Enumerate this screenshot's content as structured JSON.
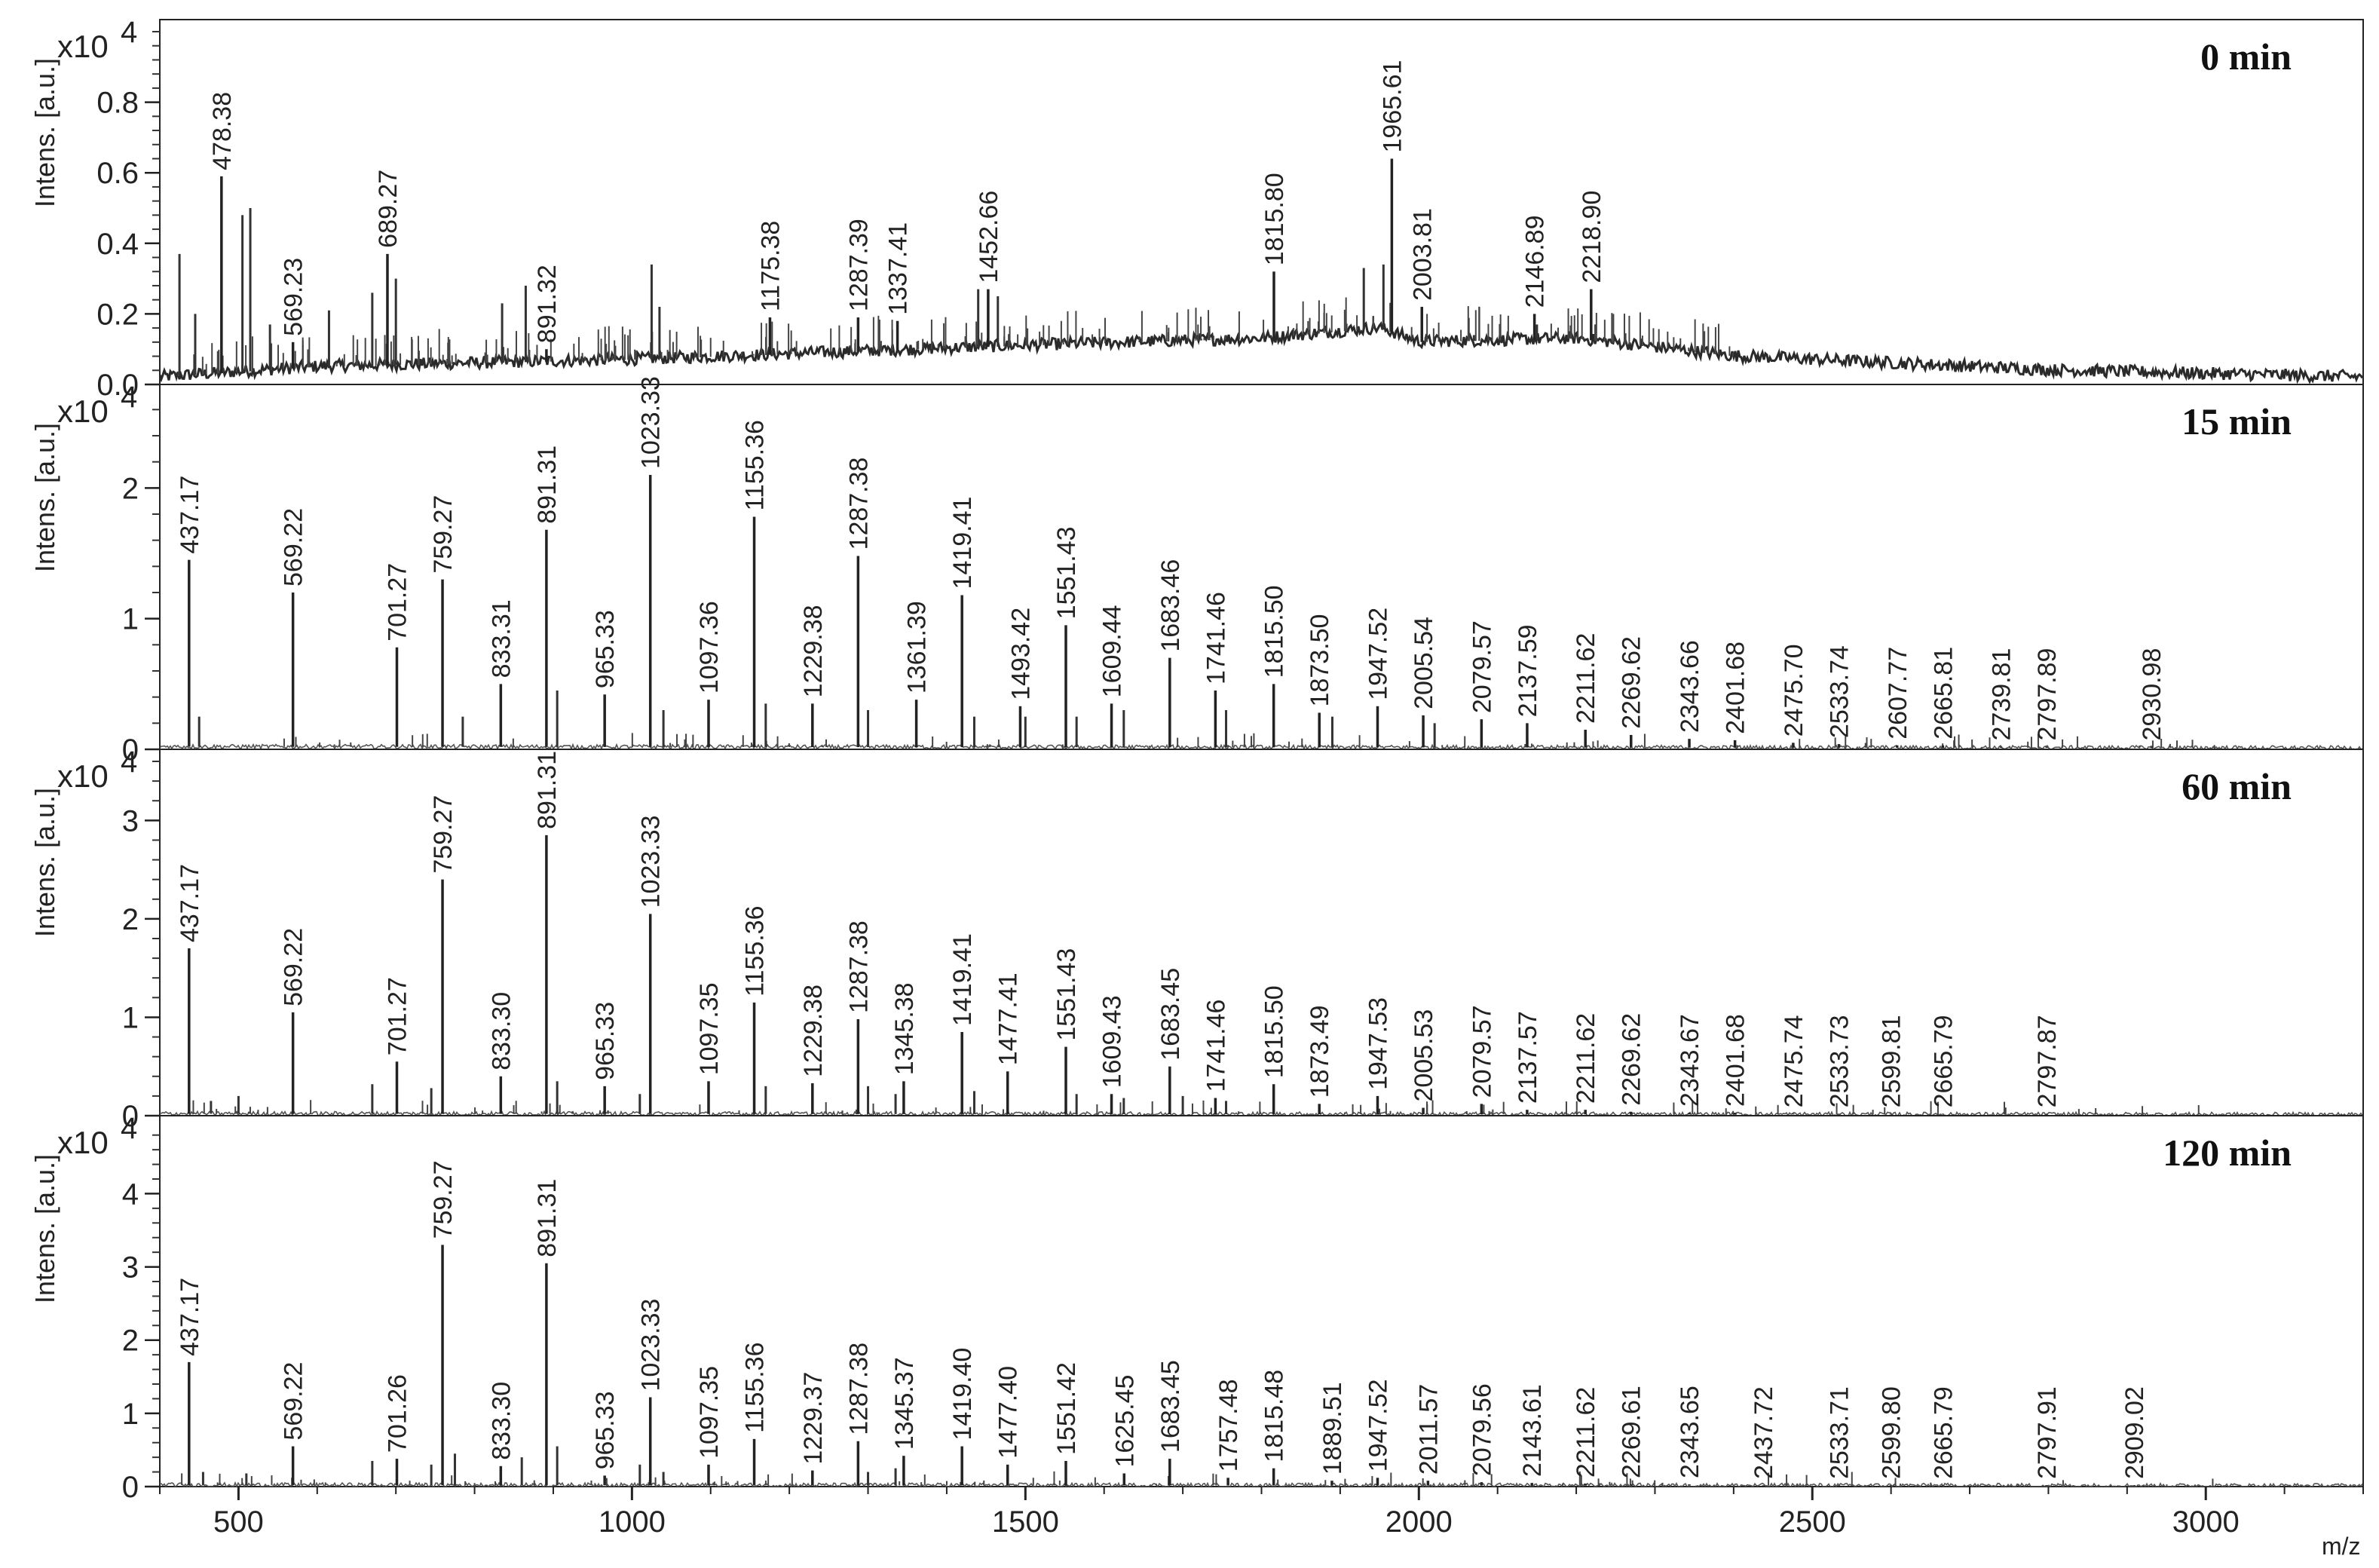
{
  "chart_data": {
    "type": "line",
    "title": "",
    "xlabel": "m/z",
    "xlim": [
      400,
      3200
    ],
    "x_ticks": [
      500,
      1000,
      1500,
      2000,
      2500,
      3000
    ],
    "panels": [
      {
        "title": "0 min",
        "ylabel": "Intens. [a.u.]",
        "multiplier": "x10",
        "exponent": "4",
        "ylim": [
          0,
          1.0
        ],
        "y_ticks": [
          0.0,
          0.2,
          0.4,
          0.6,
          0.8
        ],
        "y_tick_labels": [
          "0.0",
          "0.2",
          "0.4",
          "0.6",
          "0.8"
        ],
        "baseline": [
          [
            400,
            0.02
          ],
          [
            600,
            0.05
          ],
          [
            1000,
            0.07
          ],
          [
            1500,
            0.11
          ],
          [
            1800,
            0.13
          ],
          [
            1950,
            0.16
          ],
          [
            2000,
            0.12
          ],
          [
            2200,
            0.13
          ],
          [
            2400,
            0.08
          ],
          [
            2800,
            0.04
          ],
          [
            3200,
            0.02
          ]
        ],
        "labeled_peaks": [
          {
            "mz": 478.38,
            "label": "478.38",
            "intensity": 0.59
          },
          {
            "mz": 569.23,
            "label": "569.23",
            "intensity": 0.12
          },
          {
            "mz": 689.27,
            "label": "689.27",
            "intensity": 0.37
          },
          {
            "mz": 891.32,
            "label": "891.32",
            "intensity": 0.1
          },
          {
            "mz": 1175.38,
            "label": "1175.38",
            "intensity": 0.19
          },
          {
            "mz": 1287.39,
            "label": "1287.39",
            "intensity": 0.19
          },
          {
            "mz": 1337.41,
            "label": "1337.41",
            "intensity": 0.18
          },
          {
            "mz": 1452.66,
            "label": "1452.66",
            "intensity": 0.27
          },
          {
            "mz": 1815.8,
            "label": "1815.80",
            "intensity": 0.32
          },
          {
            "mz": 1965.61,
            "label": "1965.61",
            "intensity": 0.64
          },
          {
            "mz": 2003.81,
            "label": "2003.81",
            "intensity": 0.22
          },
          {
            "mz": 2146.89,
            "label": "2146.89",
            "intensity": 0.2
          },
          {
            "mz": 2218.9,
            "label": "2218.90",
            "intensity": 0.27
          }
        ],
        "minor_peaks": [
          [
            425,
            0.37
          ],
          [
            445,
            0.2
          ],
          [
            505,
            0.48
          ],
          [
            515,
            0.5
          ],
          [
            540,
            0.17
          ],
          [
            615,
            0.21
          ],
          [
            670,
            0.26
          ],
          [
            700,
            0.3
          ],
          [
            835,
            0.23
          ],
          [
            865,
            0.28
          ],
          [
            1025,
            0.34
          ],
          [
            1035,
            0.22
          ],
          [
            1440,
            0.27
          ],
          [
            1465,
            0.25
          ],
          [
            1930,
            0.33
          ],
          [
            1955,
            0.34
          ],
          [
            2070,
            0.14
          ],
          [
            2150,
            0.17
          ]
        ]
      },
      {
        "title": "15 min",
        "ylabel": "Intens. [a.u.]",
        "multiplier": "x10",
        "exponent": "4",
        "ylim": [
          0,
          2.7
        ],
        "y_ticks": [
          0,
          1,
          2
        ],
        "y_tick_labels": [
          "0",
          "1",
          "2"
        ],
        "baseline": [
          [
            400,
            0.02
          ],
          [
            3200,
            0.01
          ]
        ],
        "labeled_peaks": [
          {
            "mz": 437.17,
            "label": "437.17",
            "intensity": 1.45
          },
          {
            "mz": 569.22,
            "label": "569.22",
            "intensity": 1.2
          },
          {
            "mz": 701.27,
            "label": "701.27",
            "intensity": 0.78
          },
          {
            "mz": 759.27,
            "label": "759.27",
            "intensity": 1.3
          },
          {
            "mz": 833.31,
            "label": "833.31",
            "intensity": 0.5
          },
          {
            "mz": 891.31,
            "label": "891.31",
            "intensity": 1.68
          },
          {
            "mz": 965.33,
            "label": "965.33",
            "intensity": 0.42
          },
          {
            "mz": 1023.33,
            "label": "1023.33",
            "intensity": 2.1
          },
          {
            "mz": 1097.36,
            "label": "1097.36",
            "intensity": 0.38
          },
          {
            "mz": 1155.36,
            "label": "1155.36",
            "intensity": 1.78
          },
          {
            "mz": 1229.38,
            "label": "1229.38",
            "intensity": 0.35
          },
          {
            "mz": 1287.38,
            "label": "1287.38",
            "intensity": 1.48
          },
          {
            "mz": 1361.39,
            "label": "1361.39",
            "intensity": 0.38
          },
          {
            "mz": 1419.41,
            "label": "1419.41",
            "intensity": 1.18
          },
          {
            "mz": 1493.42,
            "label": "1493.42",
            "intensity": 0.33
          },
          {
            "mz": 1551.43,
            "label": "1551.43",
            "intensity": 0.95
          },
          {
            "mz": 1609.44,
            "label": "1609.44",
            "intensity": 0.35
          },
          {
            "mz": 1683.46,
            "label": "1683.46",
            "intensity": 0.7
          },
          {
            "mz": 1741.46,
            "label": "1741.46",
            "intensity": 0.45
          },
          {
            "mz": 1815.5,
            "label": "1815.50",
            "intensity": 0.5
          },
          {
            "mz": 1873.5,
            "label": "1873.50",
            "intensity": 0.28
          },
          {
            "mz": 1947.52,
            "label": "1947.52",
            "intensity": 0.33
          },
          {
            "mz": 2005.54,
            "label": "2005.54",
            "intensity": 0.26
          },
          {
            "mz": 2079.57,
            "label": "2079.57",
            "intensity": 0.23
          },
          {
            "mz": 2137.59,
            "label": "2137.59",
            "intensity": 0.2
          },
          {
            "mz": 2211.62,
            "label": "2211.62",
            "intensity": 0.15
          },
          {
            "mz": 2269.62,
            "label": "2269.62",
            "intensity": 0.11
          },
          {
            "mz": 2343.66,
            "label": "2343.66",
            "intensity": 0.08
          },
          {
            "mz": 2401.68,
            "label": "2401.68",
            "intensity": 0.07
          },
          {
            "mz": 2475.7,
            "label": "2475.70",
            "intensity": 0.05
          },
          {
            "mz": 2533.74,
            "label": "2533.74",
            "intensity": 0.04
          },
          {
            "mz": 2607.77,
            "label": "2607.77",
            "intensity": 0.03
          },
          {
            "mz": 2665.81,
            "label": "2665.81",
            "intensity": 0.03
          },
          {
            "mz": 2739.81,
            "label": "2739.81",
            "intensity": 0.02
          },
          {
            "mz": 2797.89,
            "label": "2797.89",
            "intensity": 0.02
          },
          {
            "mz": 2930.98,
            "label": "2930.98",
            "intensity": 0.02
          }
        ],
        "minor_peaks": [
          [
            450,
            0.25
          ],
          [
            785,
            0.25
          ],
          [
            905,
            0.45
          ],
          [
            1040,
            0.3
          ],
          [
            1170,
            0.35
          ],
          [
            1300,
            0.3
          ],
          [
            1435,
            0.25
          ],
          [
            1500,
            0.25
          ],
          [
            1565,
            0.25
          ],
          [
            1625,
            0.3
          ],
          [
            1755,
            0.3
          ],
          [
            1890,
            0.25
          ],
          [
            2020,
            0.2
          ]
        ]
      },
      {
        "title": "60 min",
        "ylabel": "Intens. [a.u.]",
        "multiplier": "x10",
        "exponent": "4",
        "ylim": [
          0,
          3.6
        ],
        "y_ticks": [
          0,
          1,
          2,
          3
        ],
        "y_tick_labels": [
          "0",
          "1",
          "2",
          "3"
        ],
        "baseline": [
          [
            400,
            0.02
          ],
          [
            3200,
            0.01
          ]
        ],
        "labeled_peaks": [
          {
            "mz": 437.17,
            "label": "437.17",
            "intensity": 1.7
          },
          {
            "mz": 569.22,
            "label": "569.22",
            "intensity": 1.05
          },
          {
            "mz": 701.27,
            "label": "701.27",
            "intensity": 0.55
          },
          {
            "mz": 759.27,
            "label": "759.27",
            "intensity": 2.4
          },
          {
            "mz": 833.3,
            "label": "833.30",
            "intensity": 0.4
          },
          {
            "mz": 891.31,
            "label": "891.31",
            "intensity": 2.85
          },
          {
            "mz": 965.33,
            "label": "965.33",
            "intensity": 0.3
          },
          {
            "mz": 1023.33,
            "label": "1023.33",
            "intensity": 2.05
          },
          {
            "mz": 1097.35,
            "label": "1097.35",
            "intensity": 0.35
          },
          {
            "mz": 1155.36,
            "label": "1155.36",
            "intensity": 1.15
          },
          {
            "mz": 1229.38,
            "label": "1229.38",
            "intensity": 0.33
          },
          {
            "mz": 1287.38,
            "label": "1287.38",
            "intensity": 0.98
          },
          {
            "mz": 1345.38,
            "label": "1345.38",
            "intensity": 0.35
          },
          {
            "mz": 1419.41,
            "label": "1419.41",
            "intensity": 0.85
          },
          {
            "mz": 1477.41,
            "label": "1477.41",
            "intensity": 0.45
          },
          {
            "mz": 1551.43,
            "label": "1551.43",
            "intensity": 0.7
          },
          {
            "mz": 1609.43,
            "label": "1609.43",
            "intensity": 0.22
          },
          {
            "mz": 1683.45,
            "label": "1683.45",
            "intensity": 0.5
          },
          {
            "mz": 1741.46,
            "label": "1741.46",
            "intensity": 0.18
          },
          {
            "mz": 1815.5,
            "label": "1815.50",
            "intensity": 0.32
          },
          {
            "mz": 1873.49,
            "label": "1873.49",
            "intensity": 0.12
          },
          {
            "mz": 1947.53,
            "label": "1947.53",
            "intensity": 0.2
          },
          {
            "mz": 2005.53,
            "label": "2005.53",
            "intensity": 0.08
          },
          {
            "mz": 2079.57,
            "label": "2079.57",
            "intensity": 0.12
          },
          {
            "mz": 2137.57,
            "label": "2137.57",
            "intensity": 0.06
          },
          {
            "mz": 2211.62,
            "label": "2211.62",
            "intensity": 0.06
          },
          {
            "mz": 2269.62,
            "label": "2269.62",
            "intensity": 0.04
          },
          {
            "mz": 2343.67,
            "label": "2343.67",
            "intensity": 0.03
          },
          {
            "mz": 2401.68,
            "label": "2401.68",
            "intensity": 0.03
          },
          {
            "mz": 2475.74,
            "label": "2475.74",
            "intensity": 0.02
          },
          {
            "mz": 2533.73,
            "label": "2533.73",
            "intensity": 0.02
          },
          {
            "mz": 2599.81,
            "label": "2599.81",
            "intensity": 0.02
          },
          {
            "mz": 2665.79,
            "label": "2665.79",
            "intensity": 0.02
          },
          {
            "mz": 2797.87,
            "label": "2797.87",
            "intensity": 0.02
          }
        ],
        "minor_peaks": [
          [
            465,
            0.15
          ],
          [
            500,
            0.2
          ],
          [
            670,
            0.32
          ],
          [
            745,
            0.28
          ],
          [
            905,
            0.35
          ],
          [
            1010,
            0.22
          ],
          [
            1170,
            0.3
          ],
          [
            1300,
            0.3
          ],
          [
            1335,
            0.22
          ],
          [
            1435,
            0.25
          ],
          [
            1565,
            0.22
          ],
          [
            1625,
            0.18
          ],
          [
            1700,
            0.2
          ],
          [
            1755,
            0.15
          ]
        ]
      },
      {
        "title": "120 min",
        "ylabel": "Intens. [a.u.]",
        "multiplier": "x10",
        "exponent": "4",
        "ylim": [
          0,
          4.9
        ],
        "y_ticks": [
          0,
          1,
          2,
          3,
          4
        ],
        "y_tick_labels": [
          "0",
          "1",
          "2",
          "3",
          "4"
        ],
        "baseline": [
          [
            400,
            0.02
          ],
          [
            3200,
            0.01
          ]
        ],
        "labeled_peaks": [
          {
            "mz": 437.17,
            "label": "437.17",
            "intensity": 1.7
          },
          {
            "mz": 569.22,
            "label": "569.22",
            "intensity": 0.55
          },
          {
            "mz": 701.26,
            "label": "701.26",
            "intensity": 0.38
          },
          {
            "mz": 759.27,
            "label": "759.27",
            "intensity": 3.3
          },
          {
            "mz": 833.3,
            "label": "833.30",
            "intensity": 0.28
          },
          {
            "mz": 891.31,
            "label": "891.31",
            "intensity": 3.05
          },
          {
            "mz": 965.33,
            "label": "965.33",
            "intensity": 0.15
          },
          {
            "mz": 1023.33,
            "label": "1023.33",
            "intensity": 1.22
          },
          {
            "mz": 1097.35,
            "label": "1097.35",
            "intensity": 0.3
          },
          {
            "mz": 1155.36,
            "label": "1155.36",
            "intensity": 0.65
          },
          {
            "mz": 1229.37,
            "label": "1229.37",
            "intensity": 0.22
          },
          {
            "mz": 1287.38,
            "label": "1287.38",
            "intensity": 0.62
          },
          {
            "mz": 1345.37,
            "label": "1345.37",
            "intensity": 0.42
          },
          {
            "mz": 1419.4,
            "label": "1419.40",
            "intensity": 0.55
          },
          {
            "mz": 1477.4,
            "label": "1477.40",
            "intensity": 0.3
          },
          {
            "mz": 1551.42,
            "label": "1551.42",
            "intensity": 0.35
          },
          {
            "mz": 1625.45,
            "label": "1625.45",
            "intensity": 0.18
          },
          {
            "mz": 1683.45,
            "label": "1683.45",
            "intensity": 0.38
          },
          {
            "mz": 1757.48,
            "label": "1757.48",
            "intensity": 0.12
          },
          {
            "mz": 1815.48,
            "label": "1815.48",
            "intensity": 0.25
          },
          {
            "mz": 1889.51,
            "label": "1889.51",
            "intensity": 0.08
          },
          {
            "mz": 1947.52,
            "label": "1947.52",
            "intensity": 0.12
          },
          {
            "mz": 2011.57,
            "label": "2011.57",
            "intensity": 0.08
          },
          {
            "mz": 2079.56,
            "label": "2079.56",
            "intensity": 0.06
          },
          {
            "mz": 2143.61,
            "label": "2143.61",
            "intensity": 0.05
          },
          {
            "mz": 2211.62,
            "label": "2211.62",
            "intensity": 0.04
          },
          {
            "mz": 2269.61,
            "label": "2269.61",
            "intensity": 0.03
          },
          {
            "mz": 2343.65,
            "label": "2343.65",
            "intensity": 0.03
          },
          {
            "mz": 2437.72,
            "label": "2437.72",
            "intensity": 0.02
          },
          {
            "mz": 2533.71,
            "label": "2533.71",
            "intensity": 0.02
          },
          {
            "mz": 2599.8,
            "label": "2599.80",
            "intensity": 0.02
          },
          {
            "mz": 2665.79,
            "label": "2665.79",
            "intensity": 0.02
          },
          {
            "mz": 2797.91,
            "label": "2797.91",
            "intensity": 0.02
          },
          {
            "mz": 2909.02,
            "label": "2909.02",
            "intensity": 0.02
          }
        ],
        "minor_peaks": [
          [
            455,
            0.2
          ],
          [
            510,
            0.18
          ],
          [
            670,
            0.35
          ],
          [
            745,
            0.3
          ],
          [
            775,
            0.45
          ],
          [
            860,
            0.4
          ],
          [
            905,
            0.55
          ],
          [
            1010,
            0.3
          ],
          [
            1040,
            0.2
          ],
          [
            1300,
            0.2
          ],
          [
            1335,
            0.25
          ]
        ]
      }
    ]
  }
}
